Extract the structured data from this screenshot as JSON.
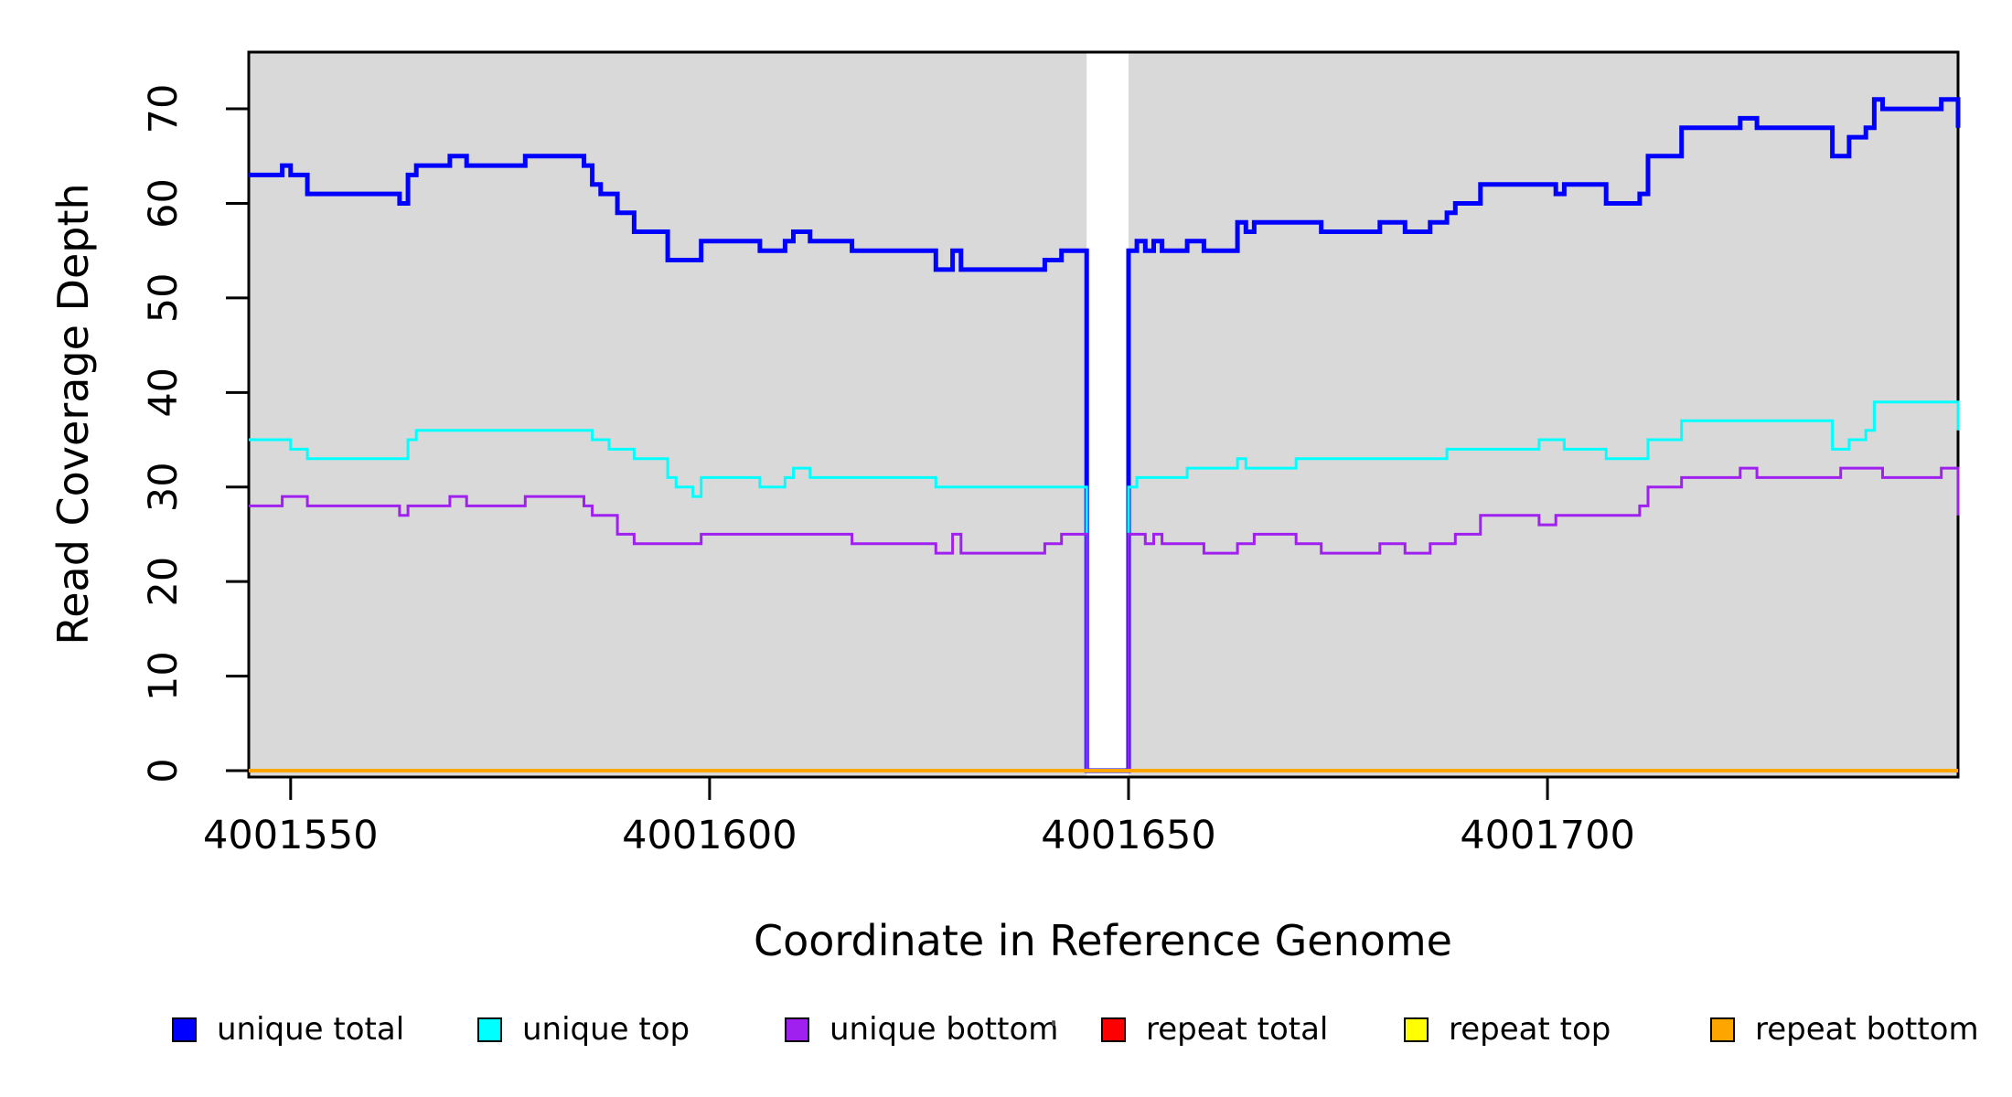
{
  "figure": {
    "x_axis_title": "Coordinate in Reference Genome",
    "y_axis_title": "Read Coverage Depth"
  },
  "legend": {
    "items": [
      {
        "label": "unique total",
        "color": "#0000ff"
      },
      {
        "label": "unique top",
        "color": "#00ffff"
      },
      {
        "label": "unique bottom",
        "color": "#a020f0"
      },
      {
        "label": "repeat total",
        "color": "#ff0000"
      },
      {
        "label": "repeat top",
        "color": "#ffff00"
      },
      {
        "label": "repeat bottom",
        "color": "#ffa500"
      }
    ]
  },
  "chart_data": {
    "type": "line",
    "subtype": "step-coverage",
    "title": "",
    "xlabel": "Coordinate in Reference Genome",
    "ylabel": "Read Coverage Depth",
    "x_range": [
      4001545,
      4001749
    ],
    "y_range": [
      0,
      76
    ],
    "x_ticks": [
      4001550,
      4001600,
      4001650,
      4001700
    ],
    "y_ticks": [
      0,
      10,
      20,
      30,
      40,
      50,
      60,
      70
    ],
    "grid": false,
    "legend_position": "bottom",
    "plot_background_color": "#d9d9d9",
    "zero_coverage_gap": [
      4001645,
      4001650
    ],
    "series": [
      {
        "name": "unique total",
        "color": "#0000ff",
        "line_width": 5,
        "points": [
          [
            4001545,
            63
          ],
          [
            4001549,
            64
          ],
          [
            4001550,
            63
          ],
          [
            4001552,
            61
          ],
          [
            4001563,
            60
          ],
          [
            4001564,
            63
          ],
          [
            4001565,
            64
          ],
          [
            4001569,
            65
          ],
          [
            4001571,
            64
          ],
          [
            4001578,
            65
          ],
          [
            4001585,
            64
          ],
          [
            4001586,
            62
          ],
          [
            4001587,
            61
          ],
          [
            4001589,
            59
          ],
          [
            4001591,
            57
          ],
          [
            4001595,
            54
          ],
          [
            4001599,
            56
          ],
          [
            4001606,
            55
          ],
          [
            4001609,
            56
          ],
          [
            4001610,
            57
          ],
          [
            4001612,
            56
          ],
          [
            4001617,
            55
          ],
          [
            4001627,
            53
          ],
          [
            4001629,
            55
          ],
          [
            4001630,
            53
          ],
          [
            4001640,
            54
          ],
          [
            4001642,
            55
          ],
          [
            4001645,
            0
          ],
          [
            4001650,
            55
          ],
          [
            4001651,
            56
          ],
          [
            4001652,
            55
          ],
          [
            4001653,
            56
          ],
          [
            4001654,
            55
          ],
          [
            4001657,
            56
          ],
          [
            4001659,
            55
          ],
          [
            4001663,
            58
          ],
          [
            4001664,
            57
          ],
          [
            4001665,
            58
          ],
          [
            4001673,
            57
          ],
          [
            4001680,
            58
          ],
          [
            4001683,
            57
          ],
          [
            4001686,
            58
          ],
          [
            4001688,
            59
          ],
          [
            4001689,
            60
          ],
          [
            4001692,
            62
          ],
          [
            4001701,
            61
          ],
          [
            4001702,
            62
          ],
          [
            4001707,
            60
          ],
          [
            4001711,
            61
          ],
          [
            4001712,
            65
          ],
          [
            4001716,
            68
          ],
          [
            4001723,
            69
          ],
          [
            4001725,
            68
          ],
          [
            4001734,
            65
          ],
          [
            4001736,
            67
          ],
          [
            4001738,
            68
          ],
          [
            4001739,
            71
          ],
          [
            4001740,
            70
          ],
          [
            4001747,
            71
          ],
          [
            4001749,
            68
          ]
        ]
      },
      {
        "name": "unique top",
        "color": "#00ffff",
        "line_width": 3,
        "points": [
          [
            4001545,
            35
          ],
          [
            4001550,
            34
          ],
          [
            4001552,
            33
          ],
          [
            4001564,
            35
          ],
          [
            4001565,
            36
          ],
          [
            4001586,
            35
          ],
          [
            4001588,
            34
          ],
          [
            4001591,
            33
          ],
          [
            4001595,
            31
          ],
          [
            4001596,
            30
          ],
          [
            4001598,
            29
          ],
          [
            4001599,
            31
          ],
          [
            4001606,
            30
          ],
          [
            4001609,
            31
          ],
          [
            4001610,
            32
          ],
          [
            4001612,
            31
          ],
          [
            4001627,
            30
          ],
          [
            4001645,
            0
          ],
          [
            4001650,
            30
          ],
          [
            4001651,
            31
          ],
          [
            4001657,
            32
          ],
          [
            4001663,
            33
          ],
          [
            4001664,
            32
          ],
          [
            4001670,
            33
          ],
          [
            4001688,
            34
          ],
          [
            4001699,
            35
          ],
          [
            4001702,
            34
          ],
          [
            4001707,
            33
          ],
          [
            4001712,
            35
          ],
          [
            4001716,
            37
          ],
          [
            4001734,
            34
          ],
          [
            4001736,
            35
          ],
          [
            4001738,
            36
          ],
          [
            4001739,
            39
          ],
          [
            4001749,
            36
          ]
        ]
      },
      {
        "name": "unique bottom",
        "color": "#a020f0",
        "line_width": 3,
        "points": [
          [
            4001545,
            28
          ],
          [
            4001549,
            29
          ],
          [
            4001552,
            28
          ],
          [
            4001563,
            27
          ],
          [
            4001564,
            28
          ],
          [
            4001569,
            29
          ],
          [
            4001571,
            28
          ],
          [
            4001578,
            29
          ],
          [
            4001585,
            28
          ],
          [
            4001586,
            27
          ],
          [
            4001589,
            25
          ],
          [
            4001591,
            24
          ],
          [
            4001599,
            25
          ],
          [
            4001617,
            24
          ],
          [
            4001627,
            23
          ],
          [
            4001629,
            25
          ],
          [
            4001630,
            23
          ],
          [
            4001640,
            24
          ],
          [
            4001642,
            25
          ],
          [
            4001645,
            0
          ],
          [
            4001650,
            25
          ],
          [
            4001652,
            24
          ],
          [
            4001653,
            25
          ],
          [
            4001654,
            24
          ],
          [
            4001659,
            23
          ],
          [
            4001663,
            24
          ],
          [
            4001665,
            25
          ],
          [
            4001670,
            24
          ],
          [
            4001673,
            23
          ],
          [
            4001680,
            24
          ],
          [
            4001683,
            23
          ],
          [
            4001686,
            24
          ],
          [
            4001689,
            25
          ],
          [
            4001692,
            27
          ],
          [
            4001699,
            26
          ],
          [
            4001701,
            27
          ],
          [
            4001711,
            28
          ],
          [
            4001712,
            30
          ],
          [
            4001716,
            31
          ],
          [
            4001723,
            32
          ],
          [
            4001725,
            31
          ],
          [
            4001735,
            32
          ],
          [
            4001740,
            31
          ],
          [
            4001747,
            32
          ],
          [
            4001749,
            27
          ]
        ]
      },
      {
        "name": "repeat total",
        "color": "#ff0000",
        "line_width": 3,
        "points": [
          [
            4001545,
            0
          ]
        ]
      },
      {
        "name": "repeat top",
        "color": "#ffff00",
        "line_width": 3,
        "points": [
          [
            4001545,
            0
          ]
        ]
      },
      {
        "name": "repeat bottom",
        "color": "#ffa500",
        "line_width": 4,
        "points": [
          [
            4001545,
            0
          ]
        ]
      }
    ]
  }
}
